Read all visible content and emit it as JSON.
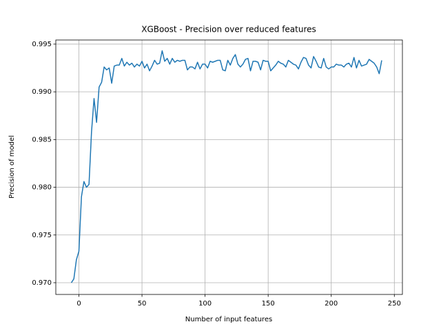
{
  "chart_data": {
    "type": "line",
    "title": "XGBoost - Precision over reduced features",
    "xlabel": "Number of input features",
    "ylabel": "Precision of model",
    "x": [
      -6,
      -4,
      -2,
      0,
      2,
      4,
      6,
      8,
      10,
      12,
      14,
      16,
      18,
      20,
      22,
      24,
      26,
      28,
      30,
      32,
      34,
      36,
      38,
      40,
      42,
      44,
      46,
      48,
      50,
      52,
      54,
      56,
      58,
      60,
      62,
      64,
      66,
      68,
      70,
      72,
      74,
      76,
      78,
      80,
      82,
      84,
      86,
      88,
      90,
      92,
      94,
      96,
      98,
      100,
      102,
      104,
      106,
      108,
      110,
      112,
      114,
      116,
      118,
      120,
      122,
      124,
      126,
      128,
      130,
      132,
      134,
      136,
      138,
      140,
      142,
      144,
      146,
      148,
      150,
      152,
      154,
      156,
      158,
      160,
      162,
      164,
      166,
      168,
      170,
      172,
      174,
      176,
      178,
      180,
      182,
      184,
      186,
      188,
      190,
      192,
      194,
      196,
      198,
      200,
      202,
      204,
      206,
      208,
      210,
      212,
      214,
      216,
      218,
      220,
      222,
      224,
      226,
      228,
      230,
      232,
      234,
      236,
      238,
      240
    ],
    "series": [
      {
        "name": "Precision",
        "color": "#1f77b4",
        "values": [
          0.97,
          0.9704,
          0.9724,
          0.9733,
          0.979,
          0.9806,
          0.98,
          0.9803,
          0.9858,
          0.9893,
          0.9868,
          0.9905,
          0.991,
          0.9926,
          0.9923,
          0.9925,
          0.9909,
          0.9927,
          0.9928,
          0.9928,
          0.9935,
          0.9927,
          0.9931,
          0.9928,
          0.993,
          0.9926,
          0.9929,
          0.9927,
          0.9932,
          0.9925,
          0.9929,
          0.9922,
          0.9927,
          0.9933,
          0.9929,
          0.993,
          0.9943,
          0.9932,
          0.9935,
          0.9929,
          0.9935,
          0.9931,
          0.9933,
          0.9932,
          0.9933,
          0.9933,
          0.9923,
          0.9926,
          0.9926,
          0.9924,
          0.9931,
          0.9924,
          0.9929,
          0.9929,
          0.9925,
          0.9932,
          0.9931,
          0.9932,
          0.9933,
          0.9933,
          0.9923,
          0.9922,
          0.9933,
          0.9928,
          0.9935,
          0.9939,
          0.9929,
          0.9926,
          0.9929,
          0.9934,
          0.9935,
          0.9922,
          0.9932,
          0.9932,
          0.9931,
          0.9923,
          0.9933,
          0.9932,
          0.9932,
          0.9922,
          0.9925,
          0.9928,
          0.9932,
          0.993,
          0.9929,
          0.9926,
          0.9933,
          0.9931,
          0.9929,
          0.9928,
          0.9924,
          0.9931,
          0.9936,
          0.9935,
          0.9928,
          0.9925,
          0.9937,
          0.9932,
          0.9926,
          0.9925,
          0.9935,
          0.9926,
          0.9924,
          0.9926,
          0.9926,
          0.9929,
          0.9928,
          0.9928,
          0.9926,
          0.9929,
          0.993,
          0.9926,
          0.9936,
          0.9925,
          0.9933,
          0.9927,
          0.9928,
          0.9929,
          0.9934,
          0.9932,
          0.993,
          0.9926,
          0.9919,
          0.9933
        ]
      }
    ],
    "xlim": [
      -18.3,
      256.4
    ],
    "ylim": [
      0.96877,
      0.99543
    ],
    "xticks": [
      0,
      50,
      100,
      150,
      200,
      250
    ],
    "yticks": [
      {
        "value": 0.97,
        "label": "0.970"
      },
      0.975,
      {
        "value": 0.98,
        "label": "0.980"
      },
      0.985,
      {
        "value": 0.99,
        "label": "0.990"
      },
      0.995
    ],
    "grid": true
  }
}
